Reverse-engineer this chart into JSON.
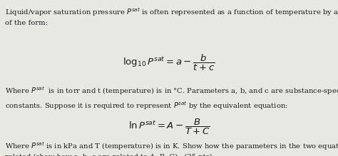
{
  "bg_color": "#e8e8e3",
  "text_color": "#1a1a1a",
  "para1": "Liquid/vapor saturation pressure $P^{sat}$ is often represented as a function of temperature by an equation\nof the form:",
  "eq1": "$\\log_{10} P^{sat} = a - \\dfrac{b}{t+c}$",
  "para2": "Where $P^{sat}$  is in torr and t (temperature) is in °C. Parameters a, b, and c are substance-specific\nconstants. Suppose it is required to represent $P^{sat}$ by the equivalent equation:",
  "eq2": "$\\ln P^{sat} = A - \\dfrac{B}{T+C}$",
  "para3": "Where $P^{sat}$ is in kPa and T (temperature) is in K. Show how the parameters in the two equations are\nrelated (show how a, b, c are related to A, B, C).  (25 pts)",
  "fontsize_body": 7.2,
  "fontsize_eq": 9.5
}
